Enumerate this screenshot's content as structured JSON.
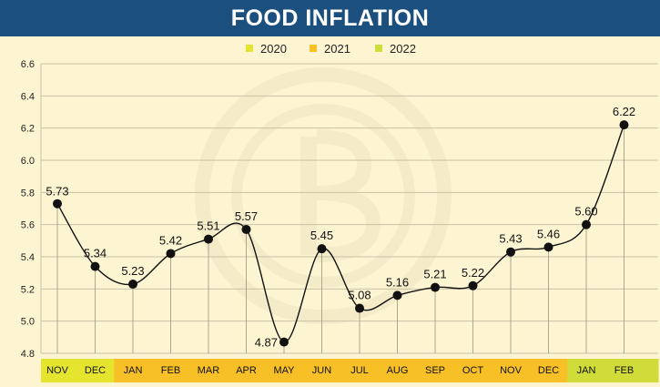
{
  "title": "FOOD INFLATION",
  "colors": {
    "header_bg": "#1b4f7e",
    "page_bg": "#fdf5d2",
    "y2020": "#e5e530",
    "y2021": "#f7c027",
    "y2022": "#cfdc3a",
    "line": "#111111",
    "point": "#111111"
  },
  "chart_data": {
    "type": "line",
    "title": "FOOD INFLATION",
    "xlabel": "",
    "ylabel": "",
    "ylim": [
      4.8,
      6.6
    ],
    "yticks": [
      "4.8",
      "5.0",
      "5.2",
      "5.4",
      "5.6",
      "5.8",
      "6.0",
      "6.2",
      "6.4",
      "6.6"
    ],
    "grid": true,
    "legend_position": "top-center",
    "legend": [
      {
        "label": "2020",
        "color": "#e5e530"
      },
      {
        "label": "2021",
        "color": "#f7c027"
      },
      {
        "label": "2022",
        "color": "#cfdc3a"
      }
    ],
    "categories": [
      "NOV",
      "DEC",
      "JAN",
      "FEB",
      "MAR",
      "APR",
      "MAY",
      "JUN",
      "JUL",
      "AUG",
      "SEP",
      "OCT",
      "NOV",
      "DEC",
      "JAN",
      "FEB"
    ],
    "category_years": [
      "2020",
      "2020",
      "2021",
      "2021",
      "2021",
      "2021",
      "2021",
      "2021",
      "2021",
      "2021",
      "2021",
      "2021",
      "2021",
      "2021",
      "2022",
      "2022"
    ],
    "values": [
      5.73,
      5.34,
      5.23,
      5.42,
      5.51,
      5.57,
      4.87,
      5.45,
      5.08,
      5.16,
      5.21,
      5.22,
      5.43,
      5.46,
      5.6,
      6.22
    ],
    "value_labels": [
      "5.73",
      "5.34",
      "5.23",
      "5.42",
      "5.51",
      "5.57",
      "4.87",
      "5.45",
      "5.08",
      "5.16",
      "5.21",
      "5.22",
      "5.43",
      "5.46",
      "5.60",
      "6.22"
    ]
  }
}
